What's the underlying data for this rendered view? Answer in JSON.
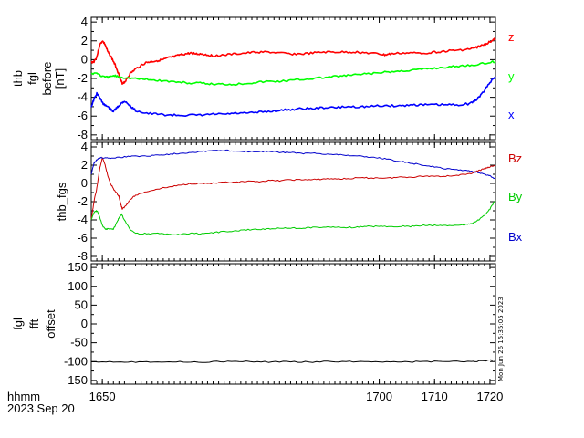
{
  "chart_data": [
    {
      "type": "line",
      "name": "panel-fgl-before",
      "ylabel_lines": [
        "thb",
        "fgl",
        "before",
        "[nT]"
      ],
      "ylim": [
        -8.5,
        4.5
      ],
      "yticks": [
        -8,
        -6,
        -4,
        -2,
        0,
        2,
        4
      ],
      "xlim": [
        1648,
        1721
      ],
      "series": [
        {
          "name": "z",
          "color": "#ff0000",
          "x": [
            1648,
            1648.5,
            1649,
            1649.5,
            1650,
            1650.5,
            1651,
            1651.5,
            1652,
            1652.5,
            1653,
            1653.3,
            1653.6,
            1654,
            1654.5,
            1655,
            1656,
            1657,
            1658,
            1659,
            1660,
            1661,
            1662,
            1663,
            1664,
            1665,
            1666,
            1667,
            1668,
            1669,
            1670,
            1672,
            1674,
            1676,
            1678,
            1680,
            1682,
            1684,
            1686,
            1688,
            1690,
            1692,
            1694,
            1696,
            1698,
            1700,
            1701,
            1702,
            1704,
            1706,
            1708,
            1710,
            1712,
            1714,
            1716,
            1717,
            1718,
            1719,
            1720,
            1720.5,
            1721
          ],
          "y": [
            -0.3,
            -0.2,
            0.3,
            1.5,
            2.0,
            1.6,
            0.8,
            0.4,
            -0.2,
            -0.8,
            -1.6,
            -2.2,
            -2.5,
            -2.4,
            -2.0,
            -1.5,
            -1.0,
            -0.6,
            -0.3,
            -0.2,
            -0.1,
            0.0,
            0.2,
            0.3,
            0.5,
            0.6,
            0.7,
            0.6,
            0.6,
            0.5,
            0.4,
            0.5,
            0.6,
            0.7,
            0.8,
            0.8,
            0.7,
            0.6,
            0.6,
            0.7,
            0.8,
            0.8,
            0.8,
            0.8,
            0.7,
            0.6,
            0.5,
            0.6,
            0.7,
            0.7,
            0.7,
            0.8,
            0.9,
            1.0,
            1.1,
            1.2,
            1.4,
            1.6,
            1.9,
            2.1,
            2.2
          ]
        },
        {
          "name": "y",
          "color": "#00ff00",
          "x": [
            1648,
            1649,
            1650,
            1651,
            1652,
            1653,
            1654,
            1656,
            1658,
            1660,
            1662,
            1664,
            1666,
            1668,
            1670,
            1672,
            1674,
            1676,
            1678,
            1680,
            1682,
            1684,
            1686,
            1688,
            1690,
            1692,
            1694,
            1696,
            1698,
            1700,
            1702,
            1704,
            1706,
            1708,
            1710,
            1712,
            1714,
            1716,
            1718,
            1720,
            1721
          ],
          "y": [
            -1.5,
            -1.4,
            -1.8,
            -1.9,
            -1.7,
            -1.8,
            -1.9,
            -2.0,
            -2.1,
            -2.2,
            -2.3,
            -2.4,
            -2.5,
            -2.5,
            -2.6,
            -2.6,
            -2.6,
            -2.5,
            -2.4,
            -2.3,
            -2.3,
            -2.2,
            -2.1,
            -2.0,
            -1.9,
            -1.8,
            -1.7,
            -1.6,
            -1.5,
            -1.4,
            -1.3,
            -1.2,
            -1.1,
            -1.0,
            -0.9,
            -0.8,
            -0.7,
            -0.6,
            -0.5,
            -0.3,
            -0.2
          ]
        },
        {
          "name": "x",
          "color": "#0000ff",
          "x": [
            1648,
            1648.5,
            1649,
            1649.5,
            1650,
            1650.5,
            1651,
            1651.5,
            1652,
            1652.5,
            1653,
            1653.5,
            1654,
            1655,
            1656,
            1658,
            1660,
            1662,
            1664,
            1666,
            1668,
            1670,
            1672,
            1674,
            1676,
            1678,
            1680,
            1682,
            1684,
            1686,
            1688,
            1690,
            1692,
            1694,
            1696,
            1698,
            1700,
            1702,
            1704,
            1706,
            1708,
            1710,
            1712,
            1714,
            1716,
            1717,
            1718,
            1719,
            1720,
            1721
          ],
          "y": [
            -5.0,
            -4.2,
            -3.6,
            -4.0,
            -4.6,
            -4.8,
            -5.0,
            -5.3,
            -5.5,
            -5.2,
            -4.9,
            -4.6,
            -4.4,
            -4.9,
            -5.4,
            -5.7,
            -5.8,
            -5.9,
            -5.9,
            -5.9,
            -5.9,
            -5.8,
            -5.8,
            -5.7,
            -5.7,
            -5.6,
            -5.5,
            -5.4,
            -5.3,
            -5.2,
            -5.2,
            -5.1,
            -5.1,
            -5.0,
            -5.0,
            -5.0,
            -4.9,
            -4.9,
            -4.9,
            -4.8,
            -4.8,
            -4.8,
            -4.8,
            -4.8,
            -4.7,
            -4.5,
            -4.0,
            -3.3,
            -2.4,
            -1.8
          ]
        }
      ],
      "legend": [
        "z",
        "y",
        "x"
      ]
    },
    {
      "type": "line",
      "name": "panel-fgs",
      "ylabel_lines": [
        "thb_fgs"
      ],
      "ylim": [
        -8.5,
        4.5
      ],
      "yticks": [
        -8,
        -6,
        -4,
        -2,
        0,
        2,
        4
      ],
      "xlim": [
        1648,
        1721
      ],
      "series": [
        {
          "name": "Bz",
          "color": "#cc0000",
          "x": [
            1648,
            1648.5,
            1649,
            1649.5,
            1650,
            1650.5,
            1651,
            1651.5,
            1652,
            1652.5,
            1653,
            1653.3,
            1653.6,
            1654,
            1654.5,
            1655,
            1656,
            1658,
            1660,
            1662,
            1664,
            1666,
            1668,
            1670,
            1672,
            1674,
            1676,
            1678,
            1680,
            1682,
            1684,
            1686,
            1688,
            1690,
            1692,
            1694,
            1696,
            1698,
            1700,
            1702,
            1704,
            1706,
            1708,
            1710,
            1712,
            1714,
            1716,
            1717,
            1718,
            1719,
            1720,
            1721
          ],
          "y": [
            -4.0,
            -2.0,
            -0.5,
            1.5,
            2.8,
            2.0,
            0.8,
            0.0,
            -0.6,
            -1.0,
            -1.4,
            -2.2,
            -2.8,
            -2.6,
            -2.2,
            -1.8,
            -1.3,
            -0.9,
            -0.6,
            -0.4,
            -0.2,
            0.0,
            0.0,
            0.0,
            0.1,
            0.1,
            0.2,
            0.2,
            0.3,
            0.3,
            0.4,
            0.4,
            0.4,
            0.5,
            0.5,
            0.5,
            0.6,
            0.6,
            0.6,
            0.6,
            0.7,
            0.7,
            0.8,
            0.8,
            0.8,
            0.9,
            1.0,
            1.2,
            1.4,
            1.6,
            1.8,
            2.0
          ]
        },
        {
          "name": "By",
          "color": "#00cc00",
          "x": [
            1648,
            1648.5,
            1649,
            1649.5,
            1650,
            1650.5,
            1651,
            1651.5,
            1652,
            1652.5,
            1653,
            1653.5,
            1654,
            1655,
            1656,
            1658,
            1660,
            1662,
            1664,
            1666,
            1668,
            1670,
            1672,
            1674,
            1676,
            1678,
            1680,
            1682,
            1684,
            1686,
            1688,
            1690,
            1692,
            1694,
            1696,
            1698,
            1700,
            1702,
            1704,
            1706,
            1708,
            1710,
            1712,
            1714,
            1716,
            1717,
            1718,
            1719,
            1720,
            1721
          ],
          "y": [
            -4.0,
            -3.2,
            -3.0,
            -3.6,
            -4.6,
            -5.0,
            -5.0,
            -5.0,
            -5.0,
            -4.4,
            -3.8,
            -3.4,
            -4.0,
            -5.0,
            -5.5,
            -5.5,
            -5.5,
            -5.6,
            -5.6,
            -5.5,
            -5.5,
            -5.4,
            -5.3,
            -5.2,
            -5.1,
            -5.0,
            -5.0,
            -4.9,
            -4.9,
            -4.9,
            -4.8,
            -4.8,
            -4.8,
            -4.8,
            -4.8,
            -4.7,
            -4.7,
            -4.7,
            -4.7,
            -4.7,
            -4.6,
            -4.6,
            -4.6,
            -4.6,
            -4.5,
            -4.3,
            -4.0,
            -3.5,
            -2.8,
            -1.8
          ]
        },
        {
          "name": "Bx",
          "color": "#0000cc",
          "x": [
            1648,
            1648.5,
            1649,
            1649.5,
            1650,
            1651,
            1652,
            1654,
            1656,
            1658,
            1660,
            1662,
            1664,
            1666,
            1668,
            1670,
            1672,
            1674,
            1676,
            1678,
            1680,
            1682,
            1684,
            1686,
            1688,
            1690,
            1692,
            1694,
            1696,
            1698,
            1700,
            1702,
            1704,
            1706,
            1708,
            1710,
            1712,
            1714,
            1716,
            1717,
            1718,
            1719,
            1720,
            1721
          ],
          "y": [
            1.0,
            2.2,
            2.6,
            2.8,
            2.8,
            2.8,
            2.8,
            2.9,
            3.0,
            3.0,
            3.1,
            3.2,
            3.3,
            3.4,
            3.5,
            3.6,
            3.6,
            3.6,
            3.5,
            3.5,
            3.5,
            3.4,
            3.4,
            3.3,
            3.3,
            3.2,
            3.2,
            3.1,
            3.0,
            2.9,
            2.8,
            2.6,
            2.4,
            2.2,
            2.0,
            1.8,
            1.6,
            1.5,
            1.4,
            1.3,
            1.2,
            1.0,
            0.8,
            0.5
          ]
        }
      ],
      "legend": [
        "Bz",
        "By",
        "Bx"
      ]
    },
    {
      "type": "line",
      "name": "panel-fft-offset",
      "ylabel_lines": [
        "fgl",
        "fft",
        "offset"
      ],
      "ylim": [
        -160,
        160
      ],
      "yticks": [
        -150,
        -100,
        -50,
        0,
        50,
        100,
        150
      ],
      "xlim": [
        1648,
        1721
      ],
      "series": [
        {
          "name": "offset",
          "color": "#000000",
          "x": [
            1648,
            1652,
            1656,
            1660,
            1664,
            1668,
            1672,
            1676,
            1680,
            1684,
            1688,
            1692,
            1696,
            1700,
            1704,
            1708,
            1712,
            1716,
            1718,
            1720,
            1721
          ],
          "y": [
            -100,
            -100,
            -101,
            -100,
            -101,
            -101,
            -100,
            -100,
            -101,
            -100,
            -101,
            -100,
            -100,
            -100,
            -101,
            -100,
            -100,
            -100,
            -99,
            -97,
            -95
          ]
        }
      ],
      "legend": []
    }
  ],
  "x_axis": {
    "ticks": [
      1650,
      1700,
      1710,
      1720
    ],
    "tick_labels": [
      "1650",
      "1700",
      "1710",
      "1720"
    ],
    "label_line1": "hhmm",
    "label_line2": "2023 Sep 20"
  },
  "timestamp_stamp": "Mon Jun 26 15:35:05 2023",
  "styles": {
    "axis_color": "#000000"
  }
}
